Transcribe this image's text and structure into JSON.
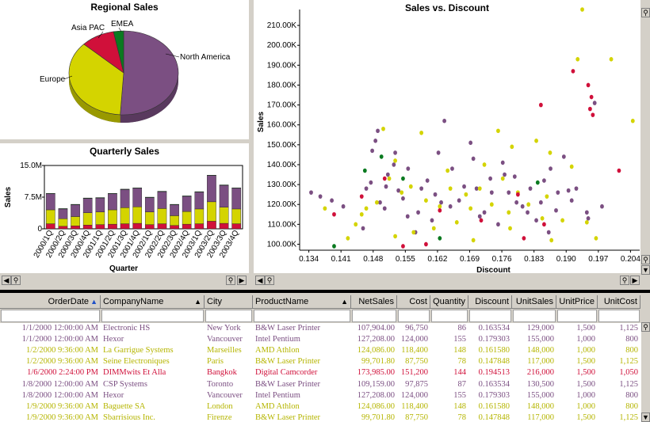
{
  "pie": {
    "title": "Regional Sales",
    "labels": [
      "North America",
      "Europe",
      "Asia PAC",
      "EMEA"
    ]
  },
  "quarterly": {
    "title": "Quarterly Sales",
    "ylabel": "Sales",
    "xlabel": "Quarter"
  },
  "scatter": {
    "title": "Sales vs. Discount",
    "ylabel": "Sales",
    "xlabel": "Discount"
  },
  "colors": {
    "purple": "#7b4f82",
    "yellow": "#d4d400",
    "red": "#d0103a",
    "green": "#0a7a20",
    "gray": "#c8c8c8"
  },
  "chart_data": [
    {
      "type": "pie",
      "title": "Regional Sales",
      "labels": [
        "North America",
        "Europe",
        "Asia PAC",
        "EMEA"
      ],
      "values": [
        51,
        36,
        10,
        3
      ],
      "colors": [
        "#7b4f82",
        "#d4d400",
        "#d0103a",
        "#0a7a20"
      ]
    },
    {
      "type": "bar",
      "title": "Quarterly Sales",
      "ylabel": "Sales",
      "xlabel": "Quarter",
      "ylim": [
        0,
        15000000
      ],
      "yticks": [
        "0",
        "7.5M",
        "15.0M"
      ],
      "categories": [
        "2000/1Q",
        "2000/2Q",
        "2000/3Q",
        "2000/4Q",
        "2001/1Q",
        "2001/2Q",
        "2001/3Q",
        "2001/4Q",
        "2002/1Q",
        "2002/2Q",
        "2002/3Q",
        "2002/4Q",
        "2003/1Q",
        "2003/2Q",
        "2003/3Q",
        "2003/4Q"
      ],
      "series": [
        {
          "name": "Asia PAC",
          "color": "#d0103a",
          "values": [
            1.2,
            0.6,
            0.7,
            0.9,
            1.0,
            1.1,
            1.2,
            1.3,
            1.0,
            1.2,
            0.8,
            1.1,
            1.2,
            1.8,
            1.3,
            1.2
          ]
        },
        {
          "name": "Europe",
          "color": "#d4d400",
          "values": [
            3.3,
            1.8,
            2.2,
            2.9,
            3.0,
            3.4,
            3.8,
            3.9,
            3.0,
            3.6,
            2.3,
            3.0,
            3.5,
            4.6,
            3.8,
            3.5
          ]
        },
        {
          "name": "North America",
          "color": "#7b4f82",
          "values": [
            3.8,
            2.3,
            2.8,
            3.4,
            3.3,
            3.8,
            4.3,
            4.4,
            3.4,
            4.0,
            2.6,
            3.6,
            4.0,
            6.2,
            5.2,
            4.9
          ]
        },
        {
          "name": "EMEA",
          "color": "#0a7a20",
          "values": [
            0.1,
            0.1,
            0.1,
            0.1,
            0.1,
            0.1,
            0.1,
            0.1,
            0.1,
            0.1,
            0.1,
            0.1,
            0.1,
            0.1,
            0.1,
            0.1
          ]
        }
      ]
    },
    {
      "type": "scatter",
      "title": "Sales vs. Discount",
      "xlabel": "Discount",
      "ylabel": "Sales",
      "xlim": [
        0.132,
        0.206
      ],
      "ylim": [
        97000,
        218000
      ],
      "xticks": [
        "0.134",
        "0.141",
        "0.148",
        "0.155",
        "0.162",
        "0.169",
        "0.176",
        "0.183",
        "0.190",
        "0.197",
        "0.204"
      ],
      "yticks": [
        "100.00K",
        "110.00K",
        "120.00K",
        "130.00K",
        "140.00K",
        "150.00K",
        "160.00K",
        "170.00K",
        "180.00K",
        "190.00K",
        "200.00K",
        "210.00K"
      ],
      "series": [
        {
          "name": "North America",
          "color": "#7b4f82",
          "points": [
            [
              0.1345,
              126000
            ],
            [
              0.1365,
              124000
            ],
            [
              0.139,
              122000
            ],
            [
              0.1415,
              119000
            ],
            [
              0.1465,
              128000
            ],
            [
              0.1475,
              131000
            ],
            [
              0.1478,
              147000
            ],
            [
              0.1485,
              152000
            ],
            [
              0.149,
              157000
            ],
            [
              0.1495,
              121000
            ],
            [
              0.1505,
              118000
            ],
            [
              0.1512,
              135000
            ],
            [
              0.1525,
              140000
            ],
            [
              0.1535,
              127000
            ],
            [
              0.1545,
              123000
            ],
            [
              0.1555,
              114000
            ],
            [
              0.1572,
              106000
            ],
            [
              0.1585,
              128000
            ],
            [
              0.1598,
              132000
            ],
            [
              0.1615,
              125000
            ],
            [
              0.1622,
              146000
            ],
            [
              0.1635,
              162000
            ],
            [
              0.1652,
              138000
            ],
            [
              0.1667,
              122000
            ],
            [
              0.1692,
              151000
            ],
            [
              0.1705,
              128000
            ],
            [
              0.1722,
              116000
            ],
            [
              0.1735,
              133000
            ],
            [
              0.1752,
              110000
            ],
            [
              0.1766,
              135000
            ],
            [
              0.1775,
              126000
            ],
            [
              0.1792,
              121000
            ],
            [
              0.1805,
              119000
            ],
            [
              0.1822,
              128000
            ],
            [
              0.1835,
              112000
            ],
            [
              0.1852,
              132000
            ],
            [
              0.1866,
              138000
            ],
            [
              0.1882,
              126000
            ],
            [
              0.1895,
              144000
            ],
            [
              0.1912,
              122000
            ],
            [
              0.1922,
              128000
            ],
            [
              0.1945,
              116000
            ],
            [
              0.1962,
              171000
            ],
            [
              0.1978,
              119000
            ],
            [
              0.1508,
              129000
            ],
            [
              0.1556,
              138000
            ],
            [
              0.1608,
              112000
            ],
            [
              0.1648,
              119000
            ],
            [
              0.1698,
              143000
            ],
            [
              0.1738,
              126000
            ],
            [
              0.1788,
              134000
            ],
            [
              0.1816,
              116000
            ],
            [
              0.1862,
              106000
            ],
            [
              0.1905,
              127000
            ],
            [
              0.1948,
              113000
            ],
            [
              0.1458,
              108000
            ],
            [
              0.1528,
              146000
            ],
            [
              0.1578,
              116000
            ],
            [
              0.1628,
              121000
            ],
            [
              0.1678,
              129000
            ],
            [
              0.1712,
              114000
            ],
            [
              0.1762,
              141000
            ],
            [
              0.1845,
              121000
            ],
            [
              0.1878,
              117000
            ]
          ]
        },
        {
          "name": "Europe",
          "color": "#d4d400",
          "points": [
            [
              0.1375,
              118000
            ],
            [
              0.1425,
              103000
            ],
            [
              0.1442,
              110000
            ],
            [
              0.1465,
              118000
            ],
            [
              0.1488,
              121000
            ],
            [
              0.1502,
              158000
            ],
            [
              0.1515,
              133000
            ],
            [
              0.1528,
              104000
            ],
            [
              0.1542,
              126000
            ],
            [
              0.1562,
              129000
            ],
            [
              0.1585,
              156000
            ],
            [
              0.1595,
              122000
            ],
            [
              0.1612,
              108000
            ],
            [
              0.1625,
              119000
            ],
            [
              0.1642,
              137000
            ],
            [
              0.1662,
              111000
            ],
            [
              0.1682,
              125000
            ],
            [
              0.1698,
              102000
            ],
            [
              0.1712,
              128000
            ],
            [
              0.1722,
              140000
            ],
            [
              0.1738,
              120000
            ],
            [
              0.1752,
              157000
            ],
            [
              0.1762,
              133000
            ],
            [
              0.1775,
              116000
            ],
            [
              0.1782,
              149000
            ],
            [
              0.1795,
              126000
            ],
            [
              0.1818,
              120000
            ],
            [
              0.1835,
              152000
            ],
            [
              0.1848,
              113000
            ],
            [
              0.1858,
              124000
            ],
            [
              0.1865,
              146000
            ],
            [
              0.1892,
              112000
            ],
            [
              0.1912,
              139000
            ],
            [
              0.1925,
              193000
            ],
            [
              0.1935,
              218000
            ],
            [
              0.1945,
              111000
            ],
            [
              0.1965,
              103000
            ],
            [
              0.1998,
              193000
            ],
            [
              0.2045,
              162000
            ],
            [
              0.1528,
              142000
            ],
            [
              0.1568,
              106000
            ],
            [
              0.1648,
              128000
            ],
            [
              0.1692,
              118000
            ],
            [
              0.1778,
              108000
            ],
            [
              0.1868,
              102000
            ],
            [
              0.1455,
              115000
            ]
          ]
        },
        {
          "name": "Asia PAC",
          "color": "#d0103a",
          "points": [
            [
              0.1395,
              115000
            ],
            [
              0.1455,
              124000
            ],
            [
              0.1505,
              133000
            ],
            [
              0.1595,
              100000
            ],
            [
              0.1625,
              117000
            ],
            [
              0.1715,
              112000
            ],
            [
              0.1795,
              125000
            ],
            [
              0.1808,
              103000
            ],
            [
              0.1845,
              170000
            ],
            [
              0.1915,
              187000
            ],
            [
              0.1948,
              180000
            ],
            [
              0.1952,
              168000
            ],
            [
              0.1955,
              174000
            ],
            [
              0.1958,
              165000
            ],
            [
              0.2015,
              137000
            ],
            [
              0.1852,
              110000
            ],
            [
              0.1545,
              99000
            ]
          ]
        },
        {
          "name": "EMEA",
          "color": "#0a7a20",
          "points": [
            [
              0.1395,
              99000
            ],
            [
              0.1462,
              137000
            ],
            [
              0.1498,
              144000
            ],
            [
              0.1545,
              133000
            ],
            [
              0.1625,
              103000
            ],
            [
              0.1838,
              131000
            ]
          ]
        }
      ]
    }
  ],
  "table": {
    "columns": [
      "OrderDate",
      "CompanyName",
      "City",
      "ProductName",
      "NetSales",
      "Cost",
      "Quantity",
      "Discount",
      "UnitSales",
      "UnitPrice",
      "UnitCost"
    ],
    "rows": [
      {
        "color": "#7b4f82",
        "cells": [
          "1/1/2000 12:00:00 AM",
          "Electronic HS",
          "New York",
          "B&W Laser Printer",
          "107,904.00",
          "96,750",
          "86",
          "0.163534",
          "129,000",
          "1,500",
          "1,125"
        ]
      },
      {
        "color": "#7b4f82",
        "cells": [
          "1/1/2000 12:00:00 AM",
          "Hexor",
          "Vancouver",
          "Intel Pentium",
          "127,208.00",
          "124,000",
          "155",
          "0.179303",
          "155,000",
          "1,000",
          "800"
        ]
      },
      {
        "color": "#b5b500",
        "cells": [
          "1/2/2000 9:36:00 AM",
          "La Garrigue Systems",
          "Marseilles",
          "AMD Athlon",
          "124,086.00",
          "118,400",
          "148",
          "0.161580",
          "148,000",
          "1,000",
          "800"
        ]
      },
      {
        "color": "#b5b500",
        "cells": [
          "1/2/2000 9:36:00 AM",
          "Seine Electroniques",
          "Paris",
          "B&W Laser Printer",
          "99,701.80",
          "87,750",
          "78",
          "0.147848",
          "117,000",
          "1,500",
          "1,125"
        ]
      },
      {
        "color": "#d0103a",
        "cells": [
          "1/6/2000 2:24:00 PM",
          "DIMMwits Et Alla",
          "Bangkok",
          "Digital Camcorder",
          "173,985.00",
          "151,200",
          "144",
          "0.194513",
          "216,000",
          "1,500",
          "1,050"
        ]
      },
      {
        "color": "#7b4f82",
        "cells": [
          "1/8/2000 12:00:00 AM",
          "CSP Systems",
          "Toronto",
          "B&W Laser Printer",
          "109,159.00",
          "97,875",
          "87",
          "0.163534",
          "130,500",
          "1,500",
          "1,125"
        ]
      },
      {
        "color": "#7b4f82",
        "cells": [
          "1/8/2000 12:00:00 AM",
          "Hexor",
          "Vancouver",
          "Intel Pentium",
          "127,208.00",
          "124,000",
          "155",
          "0.179303",
          "155,000",
          "1,000",
          "800"
        ]
      },
      {
        "color": "#b5b500",
        "cells": [
          "1/9/2000 9:36:00 AM",
          "Baguette SA",
          "London",
          "AMD Athlon",
          "124,086.00",
          "118,400",
          "148",
          "0.161580",
          "148,000",
          "1,000",
          "800"
        ]
      },
      {
        "color": "#b5b500",
        "cells": [
          "1/9/2000 9:36:00 AM",
          "Sbarrisious Inc.",
          "Firenze",
          "B&W Laser Printer",
          "99,701.80",
          "87,750",
          "78",
          "0.147848",
          "117,000",
          "1,500",
          "1,125"
        ]
      }
    ]
  }
}
